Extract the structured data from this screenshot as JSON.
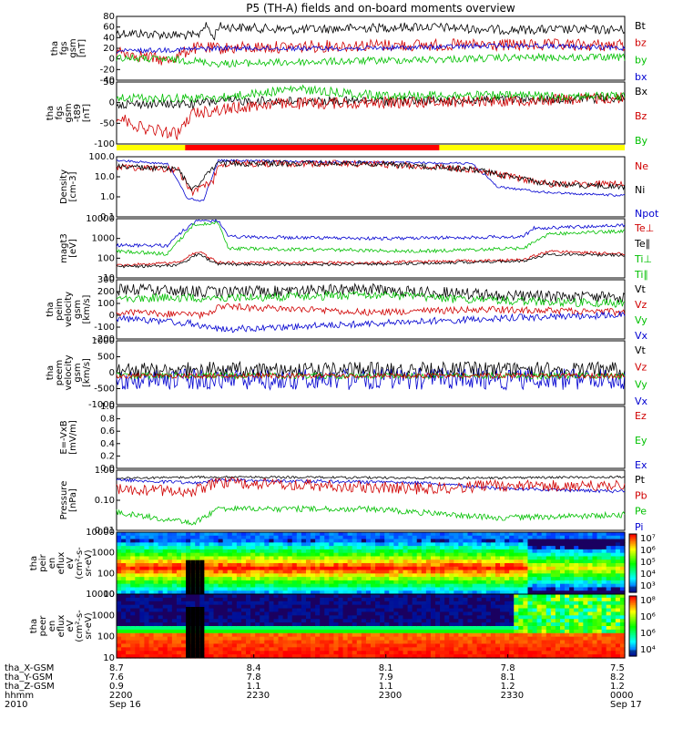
{
  "title": "P5 (TH-A) fields and on-board moments overview",
  "colors": {
    "black": "#000000",
    "red": "#d00000",
    "green": "#00c000",
    "blue": "#0000d0",
    "yellow": "#ffff00",
    "bar_red": "#ff0000"
  },
  "chart_data": [
    {
      "type": "line",
      "id": "fgs",
      "ylabel": [
        "tha",
        "fgs",
        "gsm",
        "[nT]"
      ],
      "ylim": [
        -40,
        80
      ],
      "yticks": [
        "80",
        "60",
        "40",
        "20",
        "0",
        "-20",
        "-40"
      ],
      "legend": [
        {
          "label": "Bt",
          "color": "black"
        },
        {
          "label": "bz",
          "color": "red"
        },
        {
          "label": "by",
          "color": "green"
        },
        {
          "label": "bx",
          "color": "blue"
        }
      ]
    },
    {
      "type": "line",
      "id": "t89",
      "ylabel": [
        "tha",
        "fgs",
        "gsm",
        "-t89",
        "[nT]"
      ],
      "ylim": [
        -110,
        50
      ],
      "yticks": [
        "50",
        "0",
        "-50",
        "-100"
      ],
      "legend": [
        {
          "label": "Bx",
          "color": "black"
        },
        {
          "label": "Bz",
          "color": "red"
        },
        {
          "label": "By",
          "color": "green"
        }
      ]
    },
    {
      "type": "line",
      "id": "density",
      "ylabel": [
        "Density",
        "[cm-3]"
      ],
      "log": true,
      "ylim": [
        0.1,
        100
      ],
      "yticks": [
        "100.0",
        "10.0",
        "1.0",
        "0.1"
      ],
      "legend": [
        {
          "label": "Ne",
          "color": "red"
        },
        {
          "label": "Ni",
          "color": "black"
        },
        {
          "label": "Npot",
          "color": "blue"
        }
      ]
    },
    {
      "type": "line",
      "id": "temp",
      "ylabel": [
        "magt3",
        "[eV]"
      ],
      "log": true,
      "ylim": [
        10,
        10000
      ],
      "yticks": [
        "10000",
        "1000",
        "100",
        "10"
      ],
      "legend": [
        {
          "label": "Te⊥",
          "color": "red"
        },
        {
          "label": "Te∥",
          "color": "black"
        },
        {
          "label": "Ti⊥",
          "color": "green"
        },
        {
          "label": "Ti∥",
          "color": "green"
        }
      ]
    },
    {
      "type": "line",
      "id": "peim",
      "ylabel": [
        "tha",
        "peim",
        "velocity",
        "gsm",
        "[km/s]"
      ],
      "ylim": [
        -200,
        300
      ],
      "yticks": [
        "300",
        "200",
        "100",
        "0",
        "-100",
        "-200"
      ],
      "legend": [
        {
          "label": "Vt",
          "color": "black"
        },
        {
          "label": "Vz",
          "color": "red"
        },
        {
          "label": "Vy",
          "color": "green"
        },
        {
          "label": "Vx",
          "color": "blue"
        }
      ]
    },
    {
      "type": "line",
      "id": "peem",
      "ylabel": [
        "tha",
        "peem",
        "velocity",
        "gsm",
        "[km/s]"
      ],
      "ylim": [
        -1000,
        1000
      ],
      "yticks": [
        "1000",
        "500",
        "0",
        "-500",
        "-1000"
      ],
      "legend": [
        {
          "label": "Vt",
          "color": "black"
        },
        {
          "label": "Vz",
          "color": "red"
        },
        {
          "label": "Vy",
          "color": "green"
        },
        {
          "label": "Vx",
          "color": "blue"
        }
      ]
    },
    {
      "type": "line",
      "id": "efield",
      "ylabel": [
        "E=-VxB",
        "[mV/m]"
      ],
      "ylim": [
        0,
        1
      ],
      "yticks": [
        "1.0",
        "0.8",
        "0.6",
        "0.4",
        "0.2",
        "0.0"
      ],
      "legend": [
        {
          "label": "Ez",
          "color": "red"
        },
        {
          "label": "Ey",
          "color": "green"
        },
        {
          "label": "Ex",
          "color": "blue"
        }
      ]
    },
    {
      "type": "line",
      "id": "pressure",
      "ylabel": [
        "Pressure",
        "[nPa]"
      ],
      "log": true,
      "ylim": [
        0.01,
        2
      ],
      "yticks": [
        "1.00",
        "0.10",
        "0.01"
      ],
      "legend": [
        {
          "label": "Pt",
          "color": "black"
        },
        {
          "label": "Pb",
          "color": "red"
        },
        {
          "label": "Pe",
          "color": "green"
        },
        {
          "label": "Pi",
          "color": "blue"
        }
      ]
    },
    {
      "type": "heatmap",
      "id": "peir",
      "ylabel": [
        "tha",
        "peir",
        "en",
        "eflux",
        "eV",
        "(cm²-s-",
        "sr-eV)"
      ],
      "yticks": [
        "10000",
        "1000",
        "100",
        "10"
      ],
      "colorbar": [
        "10⁷",
        "10⁶",
        "10⁵",
        "10⁴",
        "10³"
      ]
    },
    {
      "type": "heatmap",
      "id": "peer",
      "ylabel": [
        "tha",
        "peer",
        "en",
        "eflux",
        "eV",
        "(cm²-s-",
        "sr-eV)"
      ],
      "yticks": [
        "10000",
        "1000",
        "100",
        "10"
      ],
      "colorbar": [
        "10⁸",
        "10⁶",
        "10⁶",
        "10⁴"
      ]
    }
  ],
  "xaxis": {
    "rows": [
      {
        "label": "tha_X-GSM",
        "values": [
          "8.7",
          "8.4",
          "8.1",
          "7.8",
          "7.5"
        ]
      },
      {
        "label": "tha_Y-GSM",
        "values": [
          "7.6",
          "7.8",
          "7.9",
          "8.1",
          "8.2"
        ]
      },
      {
        "label": "tha_Z-GSM",
        "values": [
          "0.9",
          "1.1",
          "1.1",
          "1.2",
          "1.2"
        ]
      },
      {
        "label": "hhmm",
        "values": [
          "2200",
          "2230",
          "2300",
          "2330",
          "0000"
        ]
      },
      {
        "label": "2010",
        "values": [
          "Sep 16",
          "",
          "",
          "",
          "Sep 17"
        ]
      }
    ]
  }
}
